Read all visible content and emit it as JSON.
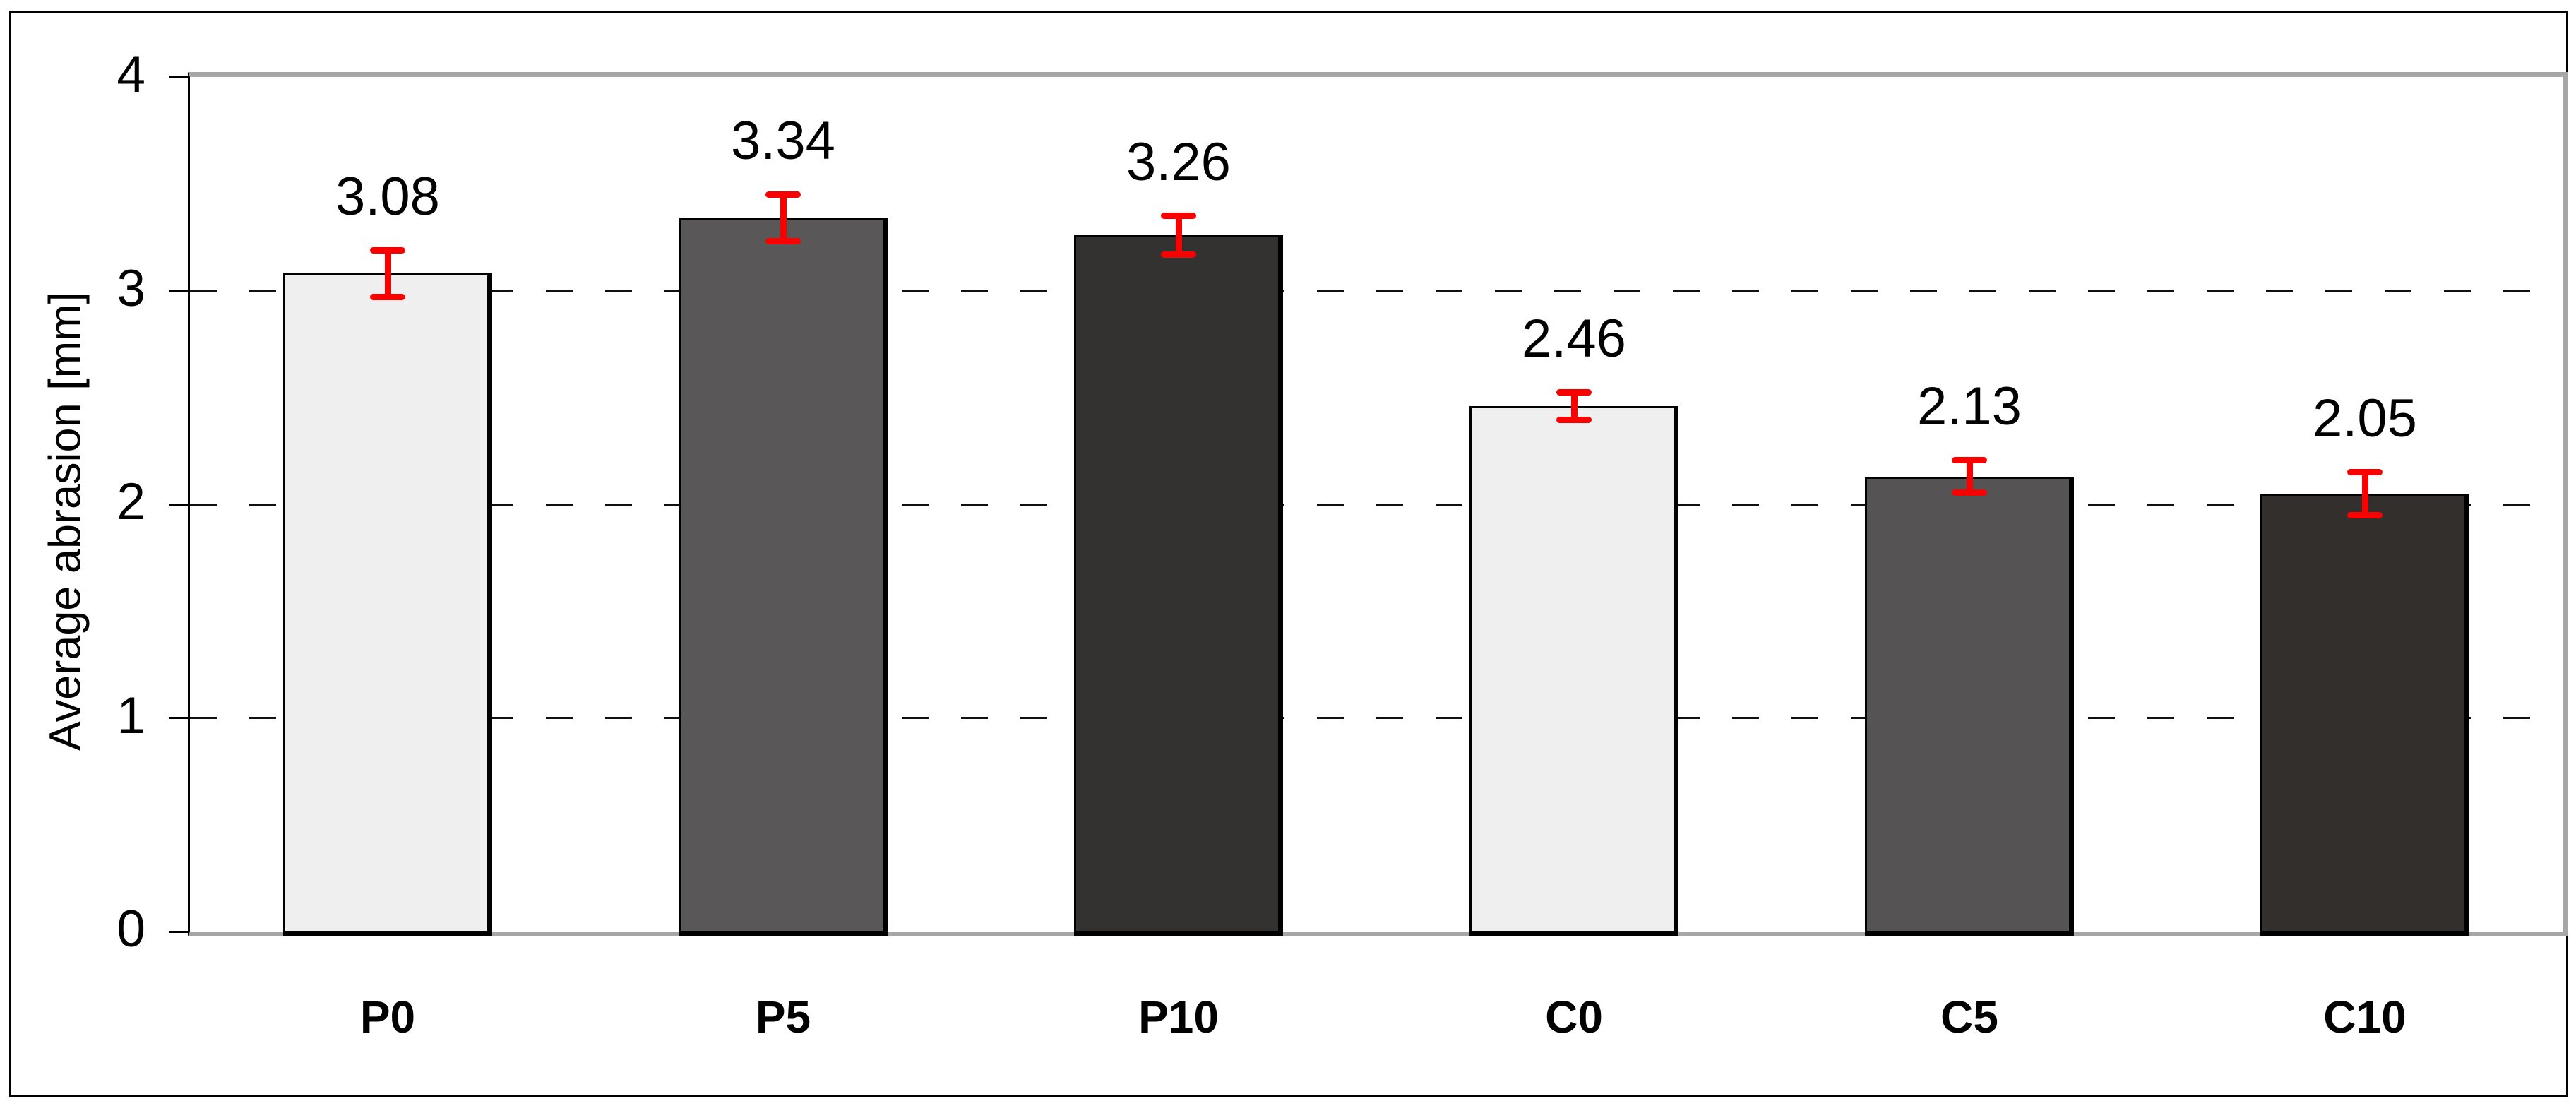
{
  "figure": {
    "background": "#ffffff",
    "outer_border_color": "#000000",
    "plot_border_color": "#a6a6a6",
    "axis_line_color": "#000000"
  },
  "chart_data": {
    "type": "bar",
    "categories": [
      "P0",
      "P5",
      "P10",
      "C0",
      "C5",
      "C10"
    ],
    "values": [
      3.08,
      3.34,
      3.26,
      2.46,
      2.13,
      2.05
    ],
    "value_labels": [
      "3.08",
      "3.34",
      "3.26",
      "2.46",
      "2.13",
      "2.05"
    ],
    "error_bars_plus_minus": [
      0.11,
      0.11,
      0.09,
      0.065,
      0.075,
      0.1
    ],
    "bar_colors": [
      "#f0efef",
      "#595757",
      "#343131",
      "#f0efef",
      "#555353",
      "#332f2c"
    ],
    "bar_border_color": "#000000",
    "error_bar_color": "#fb0000",
    "title": "",
    "xlabel": "",
    "ylabel": "Average abrasion [mm]",
    "ylim": [
      0,
      4
    ],
    "yticks": [
      0,
      1,
      2,
      3,
      4
    ],
    "ytick_labels": [
      "0",
      "1",
      "2",
      "3",
      "4"
    ],
    "gridline_values": [
      1,
      2,
      3
    ],
    "grid_style": "dashed",
    "grid_color": "#111111",
    "legend": "none"
  }
}
